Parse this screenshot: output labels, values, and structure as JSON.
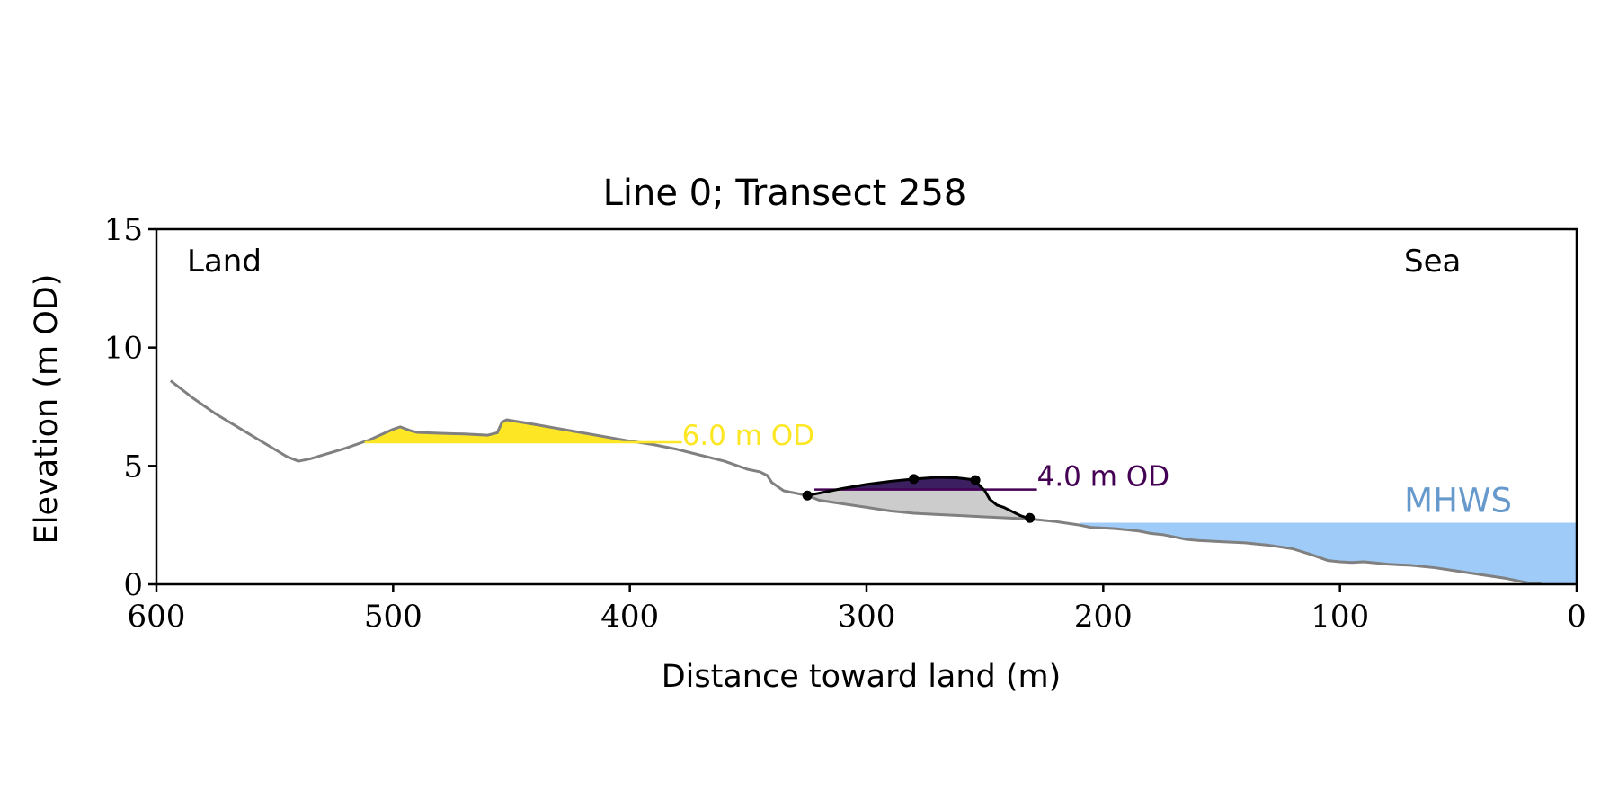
{
  "chart_data": {
    "type": "area",
    "title": "Line 0; Transect 258",
    "xlabel": "Distance toward land (m)",
    "ylabel": "Elevation (m OD)",
    "xlim": [
      600,
      0
    ],
    "ylim": [
      0,
      15
    ],
    "x_ticks": [
      600,
      500,
      400,
      300,
      200,
      100,
      0
    ],
    "y_ticks": [
      0,
      5,
      10,
      15
    ],
    "x_tick_labels": [
      "600",
      "500",
      "400",
      "300",
      "200",
      "100",
      "0"
    ],
    "y_tick_labels": [
      "0",
      "5",
      "10",
      "15"
    ],
    "grid": false,
    "corner_labels": {
      "left": "Land",
      "right": "Sea"
    },
    "profile": {
      "color": "#808080",
      "x": [
        594,
        585,
        575,
        565,
        555,
        545,
        540,
        535,
        530,
        520,
        510,
        500,
        497,
        493,
        490,
        480,
        470,
        460,
        456,
        454,
        452,
        440,
        420,
        400,
        390,
        380,
        370,
        360,
        350,
        345,
        342,
        340,
        335,
        330,
        325,
        320,
        310,
        300,
        290,
        280,
        270,
        260,
        250,
        240,
        230,
        220,
        210,
        205,
        200,
        195,
        190,
        185,
        180,
        175,
        170,
        165,
        160,
        150,
        140,
        130,
        120,
        112,
        105,
        100,
        95,
        90,
        85,
        80,
        75,
        70,
        60,
        50,
        40,
        30,
        25,
        20,
        15
      ],
      "y": [
        8.6,
        7.9,
        7.2,
        6.6,
        6.0,
        5.4,
        5.2,
        5.3,
        5.45,
        5.75,
        6.1,
        6.55,
        6.65,
        6.5,
        6.42,
        6.38,
        6.35,
        6.3,
        6.4,
        6.85,
        6.95,
        6.75,
        6.4,
        6.05,
        5.9,
        5.7,
        5.45,
        5.2,
        4.85,
        4.75,
        4.6,
        4.3,
        3.95,
        3.85,
        3.75,
        3.55,
        3.4,
        3.25,
        3.1,
        3.0,
        2.95,
        2.9,
        2.85,
        2.8,
        2.75,
        2.65,
        2.5,
        2.4,
        2.38,
        2.35,
        2.3,
        2.25,
        2.15,
        2.1,
        2.0,
        1.9,
        1.85,
        1.8,
        1.75,
        1.65,
        1.5,
        1.25,
        1.0,
        0.95,
        0.92,
        0.95,
        0.9,
        0.85,
        0.82,
        0.8,
        0.7,
        0.55,
        0.4,
        0.25,
        0.15,
        0.05,
        0.02
      ]
    },
    "threshold_6m": {
      "label": "6.0 m OD",
      "level": 6.0,
      "color": "#FDE725",
      "label_x": 378,
      "line_x": [
        512,
        378
      ],
      "fill_ranges": [
        [
          512,
          462
        ],
        [
          462,
          400
        ]
      ]
    },
    "threshold_4m": {
      "label": "4.0 m OD",
      "level": 4.0,
      "color": "#440154",
      "label_x": 228,
      "line_x": [
        322,
        228
      ]
    },
    "dune_feature": {
      "color": "#000000",
      "x": [
        325,
        320,
        310,
        300,
        290,
        280,
        270,
        262,
        255,
        253,
        250,
        248,
        245,
        242,
        238,
        235,
        232
      ],
      "y": [
        3.75,
        3.85,
        4.05,
        4.22,
        4.35,
        4.45,
        4.52,
        4.5,
        4.42,
        4.25,
        3.95,
        3.6,
        3.35,
        3.25,
        3.05,
        2.9,
        2.8
      ],
      "markers": [
        [
          325,
          3.75
        ],
        [
          280,
          4.45
        ],
        [
          254,
          4.4
        ],
        [
          231,
          2.8
        ]
      ],
      "upper_fill_color": "#3b1f60",
      "lower_fill_color": "#cccccc"
    },
    "mhws": {
      "label": "MHWS",
      "level": 2.6,
      "x_from": 210,
      "x_to": 0,
      "fill_color": "#9ecbf7",
      "label_color": "#6699cc"
    }
  }
}
